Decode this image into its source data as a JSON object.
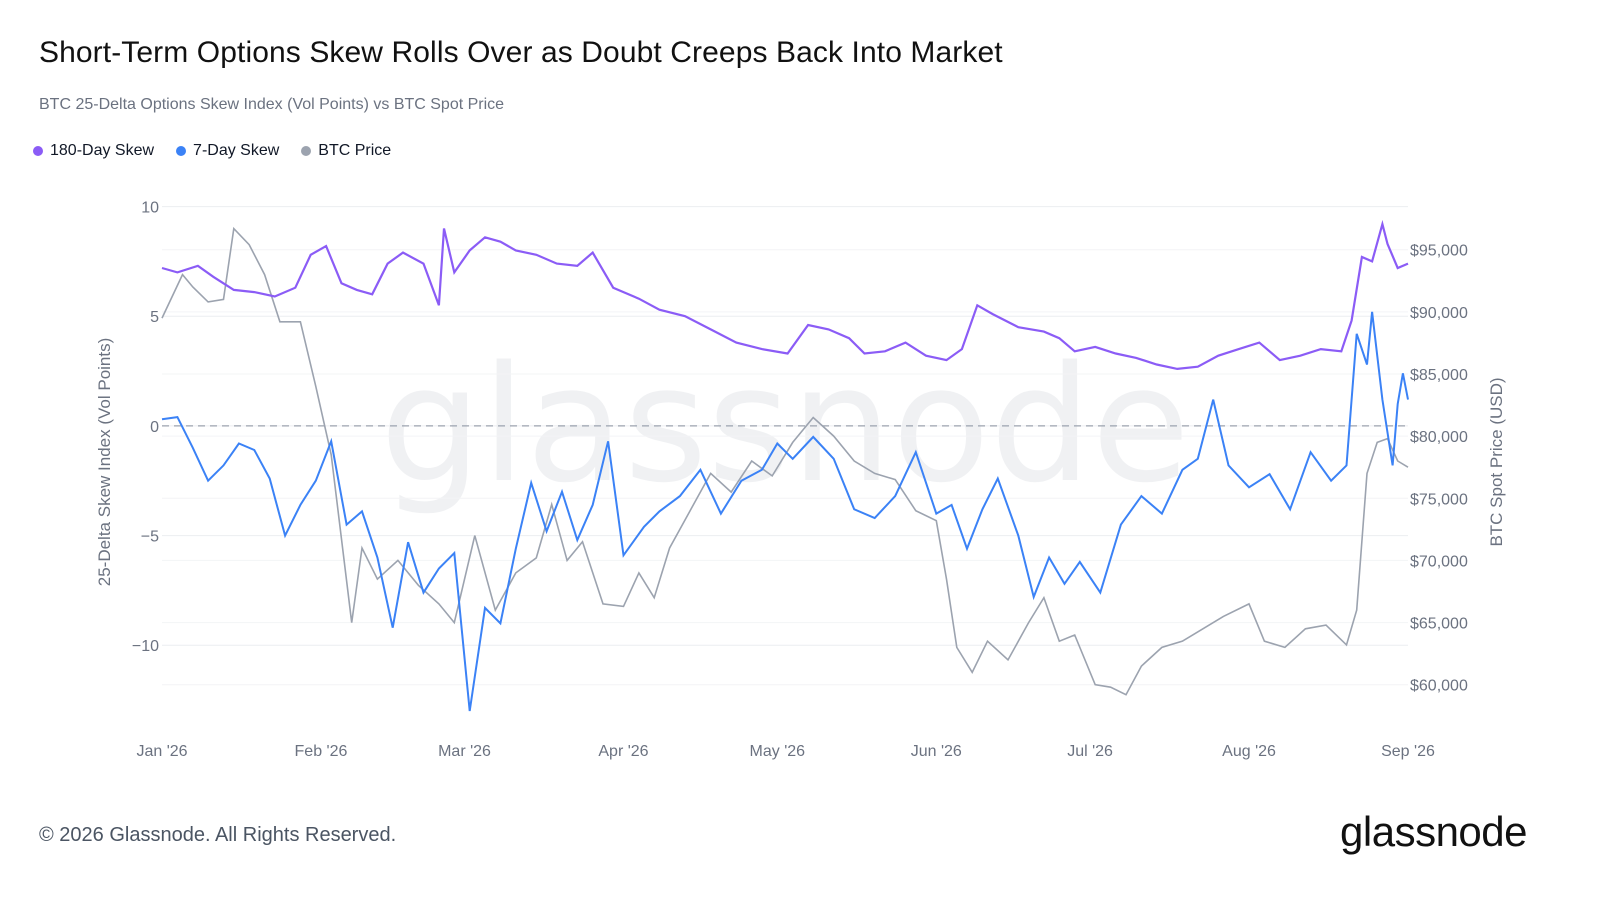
{
  "header": {
    "title": "Short-Term Options Skew Rolls Over as Doubt Creeps Back Into Market",
    "subtitle": "BTC 25-Delta Options Skew Index (Vol Points) vs BTC Spot Price"
  },
  "footer": {
    "copyright": "© 2026 Glassnode. All Rights Reserved.",
    "brand": "glassnode"
  },
  "colors": {
    "skew180": "#8b5cf6",
    "skew7": "#3b82f6",
    "price": "#9ca3af"
  },
  "chart_data": {
    "type": "line",
    "grid": true,
    "legend_position": "top-left",
    "watermark": "glassnode",
    "x_label": "",
    "x_ticks": [
      "Jan '26",
      "Feb '26",
      "Mar '26",
      "Apr '26",
      "May '26",
      "Jun '26",
      "Jul '26",
      "Aug '26",
      "Sep '26"
    ],
    "x_range": [
      "2026-01-01",
      "2026-09-01"
    ],
    "left_axis": {
      "label": "25-Delta Skew Index (Vol Points)",
      "range": [
        -13.5,
        10.3
      ],
      "ticks": [
        10,
        5,
        0,
        -5,
        -10
      ],
      "tick_labels": [
        "10",
        "5",
        "0",
        "−5",
        "−10"
      ],
      "zero_line": "dashed"
    },
    "right_axis": {
      "label": "BTC Spot Price (USD)",
      "range": [
        57000,
        99000
      ],
      "ticks": [
        95000,
        90000,
        85000,
        80000,
        75000,
        70000,
        65000,
        60000
      ],
      "tick_labels": [
        "$95,000",
        "$90,000",
        "$85,000",
        "$80,000",
        "$75,000",
        "$70,000",
        "$65,000",
        "$60,000"
      ]
    },
    "series": [
      {
        "name": "180-Day Skew",
        "axis": "left",
        "points": [
          [
            "2026-01-01",
            7.2
          ],
          [
            "2026-01-04",
            7.0
          ],
          [
            "2026-01-08",
            7.3
          ],
          [
            "2026-01-11",
            6.8
          ],
          [
            "2026-01-15",
            6.2
          ],
          [
            "2026-01-19",
            6.1
          ],
          [
            "2026-01-23",
            5.9
          ],
          [
            "2026-01-27",
            6.3
          ],
          [
            "2026-01-30",
            7.8
          ],
          [
            "2026-02-02",
            8.2
          ],
          [
            "2026-02-05",
            6.5
          ],
          [
            "2026-02-08",
            6.2
          ],
          [
            "2026-02-11",
            6.0
          ],
          [
            "2026-02-14",
            7.4
          ],
          [
            "2026-02-17",
            7.9
          ],
          [
            "2026-02-21",
            7.4
          ],
          [
            "2026-02-24",
            5.5
          ],
          [
            "2026-02-25",
            9.0
          ],
          [
            "2026-02-27",
            7.0
          ],
          [
            "2026-03-02",
            8.0
          ],
          [
            "2026-03-05",
            8.6
          ],
          [
            "2026-03-08",
            8.4
          ],
          [
            "2026-03-11",
            8.0
          ],
          [
            "2026-03-15",
            7.8
          ],
          [
            "2026-03-19",
            7.4
          ],
          [
            "2026-03-23",
            7.3
          ],
          [
            "2026-03-26",
            7.9
          ],
          [
            "2026-03-30",
            6.3
          ],
          [
            "2026-04-04",
            5.8
          ],
          [
            "2026-04-08",
            5.3
          ],
          [
            "2026-04-13",
            5.0
          ],
          [
            "2026-04-18",
            4.4
          ],
          [
            "2026-04-23",
            3.8
          ],
          [
            "2026-04-28",
            3.5
          ],
          [
            "2026-05-03",
            3.3
          ],
          [
            "2026-05-07",
            4.6
          ],
          [
            "2026-05-11",
            4.4
          ],
          [
            "2026-05-15",
            4.0
          ],
          [
            "2026-05-18",
            3.3
          ],
          [
            "2026-05-22",
            3.4
          ],
          [
            "2026-05-26",
            3.8
          ],
          [
            "2026-05-30",
            3.2
          ],
          [
            "2026-06-03",
            3.0
          ],
          [
            "2026-06-06",
            3.5
          ],
          [
            "2026-06-09",
            5.5
          ],
          [
            "2026-06-12",
            5.1
          ],
          [
            "2026-06-17",
            4.5
          ],
          [
            "2026-06-22",
            4.3
          ],
          [
            "2026-06-25",
            4.0
          ],
          [
            "2026-06-28",
            3.4
          ],
          [
            "2026-07-02",
            3.6
          ],
          [
            "2026-07-06",
            3.3
          ],
          [
            "2026-07-10",
            3.1
          ],
          [
            "2026-07-14",
            2.8
          ],
          [
            "2026-07-18",
            2.6
          ],
          [
            "2026-07-22",
            2.7
          ],
          [
            "2026-07-26",
            3.2
          ],
          [
            "2026-07-30",
            3.5
          ],
          [
            "2026-08-03",
            3.8
          ],
          [
            "2026-08-07",
            3.0
          ],
          [
            "2026-08-11",
            3.2
          ],
          [
            "2026-08-15",
            3.5
          ],
          [
            "2026-08-19",
            3.4
          ],
          [
            "2026-08-21",
            4.8
          ],
          [
            "2026-08-23",
            7.7
          ],
          [
            "2026-08-25",
            7.5
          ],
          [
            "2026-08-27",
            9.2
          ],
          [
            "2026-08-28",
            8.3
          ],
          [
            "2026-08-30",
            7.2
          ],
          [
            "2026-09-01",
            7.4
          ]
        ]
      },
      {
        "name": "7-Day Skew",
        "axis": "left",
        "points": [
          [
            "2026-01-01",
            0.3
          ],
          [
            "2026-01-04",
            0.4
          ],
          [
            "2026-01-07",
            -1.0
          ],
          [
            "2026-01-10",
            -2.5
          ],
          [
            "2026-01-13",
            -1.8
          ],
          [
            "2026-01-16",
            -0.8
          ],
          [
            "2026-01-19",
            -1.1
          ],
          [
            "2026-01-22",
            -2.4
          ],
          [
            "2026-01-25",
            -5.0
          ],
          [
            "2026-01-28",
            -3.6
          ],
          [
            "2026-01-31",
            -2.5
          ],
          [
            "2026-02-03",
            -0.7
          ],
          [
            "2026-02-06",
            -4.5
          ],
          [
            "2026-02-09",
            -3.9
          ],
          [
            "2026-02-12",
            -6.0
          ],
          [
            "2026-02-15",
            -9.2
          ],
          [
            "2026-02-18",
            -5.3
          ],
          [
            "2026-02-21",
            -7.6
          ],
          [
            "2026-02-24",
            -6.5
          ],
          [
            "2026-02-27",
            -5.8
          ],
          [
            "2026-03-02",
            -13.0
          ],
          [
            "2026-03-05",
            -8.3
          ],
          [
            "2026-03-08",
            -9.0
          ],
          [
            "2026-03-11",
            -5.6
          ],
          [
            "2026-03-14",
            -2.6
          ],
          [
            "2026-03-17",
            -4.8
          ],
          [
            "2026-03-20",
            -3.0
          ],
          [
            "2026-03-23",
            -5.2
          ],
          [
            "2026-03-26",
            -3.6
          ],
          [
            "2026-03-29",
            -0.7
          ],
          [
            "2026-04-01",
            -5.9
          ],
          [
            "2026-04-05",
            -4.6
          ],
          [
            "2026-04-08",
            -3.9
          ],
          [
            "2026-04-12",
            -3.2
          ],
          [
            "2026-04-16",
            -2.0
          ],
          [
            "2026-04-20",
            -4.0
          ],
          [
            "2026-04-24",
            -2.5
          ],
          [
            "2026-04-28",
            -2.0
          ],
          [
            "2026-05-01",
            -0.8
          ],
          [
            "2026-05-04",
            -1.5
          ],
          [
            "2026-05-08",
            -0.5
          ],
          [
            "2026-05-12",
            -1.5
          ],
          [
            "2026-05-16",
            -3.8
          ],
          [
            "2026-05-20",
            -4.2
          ],
          [
            "2026-05-24",
            -3.2
          ],
          [
            "2026-05-28",
            -1.2
          ],
          [
            "2026-06-01",
            -4.0
          ],
          [
            "2026-06-04",
            -3.6
          ],
          [
            "2026-06-07",
            -5.6
          ],
          [
            "2026-06-10",
            -3.8
          ],
          [
            "2026-06-13",
            -2.4
          ],
          [
            "2026-06-17",
            -5.0
          ],
          [
            "2026-06-20",
            -7.8
          ],
          [
            "2026-06-23",
            -6.0
          ],
          [
            "2026-06-26",
            -7.2
          ],
          [
            "2026-06-29",
            -6.2
          ],
          [
            "2026-07-03",
            -7.6
          ],
          [
            "2026-07-07",
            -4.5
          ],
          [
            "2026-07-11",
            -3.2
          ],
          [
            "2026-07-15",
            -4.0
          ],
          [
            "2026-07-19",
            -2.0
          ],
          [
            "2026-07-22",
            -1.5
          ],
          [
            "2026-07-25",
            1.2
          ],
          [
            "2026-07-28",
            -1.8
          ],
          [
            "2026-08-01",
            -2.8
          ],
          [
            "2026-08-05",
            -2.2
          ],
          [
            "2026-08-09",
            -3.8
          ],
          [
            "2026-08-13",
            -1.2
          ],
          [
            "2026-08-17",
            -2.5
          ],
          [
            "2026-08-20",
            -1.8
          ],
          [
            "2026-08-22",
            4.2
          ],
          [
            "2026-08-24",
            2.8
          ],
          [
            "2026-08-25",
            5.2
          ],
          [
            "2026-08-27",
            1.2
          ],
          [
            "2026-08-29",
            -1.8
          ],
          [
            "2026-08-30",
            1.0
          ],
          [
            "2026-08-31",
            2.4
          ],
          [
            "2026-09-01",
            1.2
          ]
        ]
      },
      {
        "name": "BTC Price",
        "axis": "right",
        "points": [
          [
            "2026-01-01",
            89500
          ],
          [
            "2026-01-05",
            93000
          ],
          [
            "2026-01-07",
            92000
          ],
          [
            "2026-01-10",
            90800
          ],
          [
            "2026-01-13",
            91000
          ],
          [
            "2026-01-15",
            96700
          ],
          [
            "2026-01-18",
            95400
          ],
          [
            "2026-01-21",
            93000
          ],
          [
            "2026-01-24",
            89200
          ],
          [
            "2026-01-28",
            89200
          ],
          [
            "2026-01-31",
            84000
          ],
          [
            "2026-02-03",
            78500
          ],
          [
            "2026-02-07",
            65000
          ],
          [
            "2026-02-09",
            71000
          ],
          [
            "2026-02-12",
            68500
          ],
          [
            "2026-02-16",
            70000
          ],
          [
            "2026-02-20",
            68000
          ],
          [
            "2026-02-24",
            66500
          ],
          [
            "2026-02-27",
            65000
          ],
          [
            "2026-03-03",
            72000
          ],
          [
            "2026-03-07",
            66000
          ],
          [
            "2026-03-11",
            69000
          ],
          [
            "2026-03-15",
            70200
          ],
          [
            "2026-03-18",
            74500
          ],
          [
            "2026-03-21",
            70000
          ],
          [
            "2026-03-24",
            71500
          ],
          [
            "2026-03-28",
            66500
          ],
          [
            "2026-04-01",
            66300
          ],
          [
            "2026-04-04",
            69000
          ],
          [
            "2026-04-07",
            67000
          ],
          [
            "2026-04-10",
            71000
          ],
          [
            "2026-04-14",
            74000
          ],
          [
            "2026-04-18",
            77000
          ],
          [
            "2026-04-22",
            75500
          ],
          [
            "2026-04-26",
            78000
          ],
          [
            "2026-04-30",
            76800
          ],
          [
            "2026-05-04",
            79500
          ],
          [
            "2026-05-08",
            81500
          ],
          [
            "2026-05-12",
            80000
          ],
          [
            "2026-05-16",
            78000
          ],
          [
            "2026-05-20",
            77000
          ],
          [
            "2026-05-24",
            76500
          ],
          [
            "2026-05-28",
            74000
          ],
          [
            "2026-06-01",
            73200
          ],
          [
            "2026-06-03",
            68500
          ],
          [
            "2026-06-05",
            63000
          ],
          [
            "2026-06-08",
            61000
          ],
          [
            "2026-06-11",
            63500
          ],
          [
            "2026-06-15",
            62000
          ],
          [
            "2026-06-19",
            65000
          ],
          [
            "2026-06-22",
            67000
          ],
          [
            "2026-06-25",
            63500
          ],
          [
            "2026-06-28",
            64000
          ],
          [
            "2026-07-02",
            60000
          ],
          [
            "2026-07-05",
            59800
          ],
          [
            "2026-07-08",
            59200
          ],
          [
            "2026-07-11",
            61500
          ],
          [
            "2026-07-15",
            63000
          ],
          [
            "2026-07-19",
            63500
          ],
          [
            "2026-07-23",
            64500
          ],
          [
            "2026-07-27",
            65500
          ],
          [
            "2026-08-01",
            66500
          ],
          [
            "2026-08-04",
            63500
          ],
          [
            "2026-08-08",
            63000
          ],
          [
            "2026-08-12",
            64500
          ],
          [
            "2026-08-16",
            64800
          ],
          [
            "2026-08-20",
            63200
          ],
          [
            "2026-08-22",
            66000
          ],
          [
            "2026-08-24",
            77000
          ],
          [
            "2026-08-26",
            79500
          ],
          [
            "2026-08-28",
            79800
          ],
          [
            "2026-08-30",
            78000
          ],
          [
            "2026-09-01",
            77500
          ]
        ]
      }
    ]
  }
}
